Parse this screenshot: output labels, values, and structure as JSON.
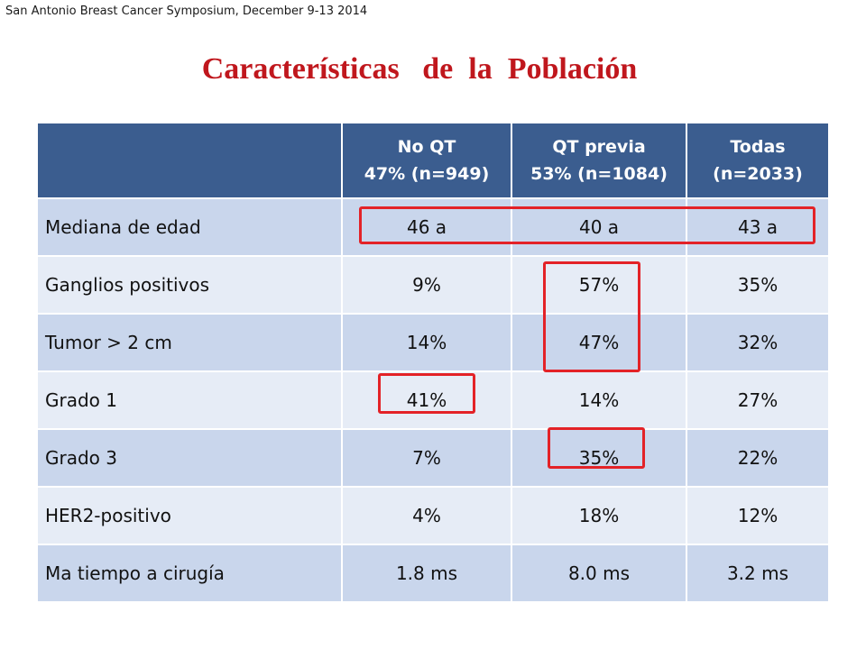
{
  "header_note": "San Antonio  Breast Cancer Symposium, December 9-13 2014",
  "title": "Características   de  la  Población",
  "table": {
    "headers": [
      {
        "line1": "",
        "line2": ""
      },
      {
        "line1": "No QT",
        "line2": "47% (n=949)"
      },
      {
        "line1": "QT  previa",
        "line2": "53% (n=1084)"
      },
      {
        "line1": "Todas",
        "line2": "(n=2033)"
      }
    ],
    "rows": [
      [
        "Mediana de edad",
        "46 a",
        "40 a",
        "43 a"
      ],
      [
        "Ganglios positivos",
        "9%",
        "57%",
        "35%"
      ],
      [
        "Tumor  > 2 cm",
        "14%",
        "47%",
        "32%"
      ],
      [
        "Grado 1",
        "41%",
        "14%",
        "27%"
      ],
      [
        "Grado 3",
        "7%",
        "35%",
        "22%"
      ],
      [
        "HER2-positivo",
        "4%",
        "18%",
        "12%"
      ],
      [
        "Ma tiempo a cirugía",
        "1.8 ms",
        "8.0 ms",
        "3.2 ms"
      ]
    ]
  },
  "highlight_color": "#e32227",
  "title_color": "#c0171d",
  "header_color": "#3b5d8f"
}
